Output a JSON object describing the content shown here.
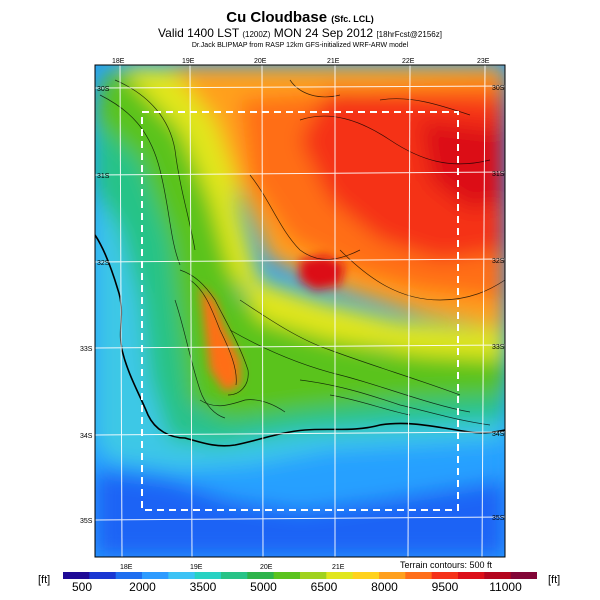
{
  "header": {
    "title": "Cu Cloudbase",
    "title_suffix": "(Sfc. LCL)",
    "valid_line_main": "Valid 1400 LST",
    "valid_line_small1": "(1200Z)",
    "valid_line_date": "MON 24 Sep 2012",
    "valid_line_small2": "[18hrFcst@2156z]",
    "credit": "Dr.Jack BLIPMAP from RASP 12km GFS-initialized WRF-ARW model"
  },
  "map": {
    "lon_labels_top": [
      "18E",
      "19E",
      "20E",
      "21E",
      "22E",
      "23E"
    ],
    "lon_labels_bottom": [
      "18E",
      "19E",
      "20E",
      "21E"
    ],
    "lat_labels_left": [
      "30S",
      "31S",
      "32S",
      "33S",
      "34S",
      "35S"
    ],
    "lat_labels_right": [
      "30S",
      "31S",
      "32S",
      "33S",
      "34S",
      "35S"
    ],
    "terrain_note": "Terrain contours: 500 ft",
    "domain_box": "dashed white inner region"
  },
  "colorbar": {
    "unit_left": "[ft]",
    "unit_right": "[ft]",
    "labels": [
      "500",
      "2000",
      "3500",
      "5000",
      "6500",
      "8000",
      "9500",
      "11000"
    ],
    "colors": [
      "#1e0a96",
      "#1937d2",
      "#1e6ef0",
      "#2d9bff",
      "#3cc3f5",
      "#28d2c3",
      "#28c387",
      "#2db44b",
      "#5ac31e",
      "#a0d21e",
      "#e1e61e",
      "#ffd21e",
      "#ffa01e",
      "#ff6e19",
      "#f53219",
      "#dc0f19",
      "#b4051e",
      "#820537"
    ]
  },
  "field_colors": {
    "sea_deep": "#1e64f5",
    "sea": "#28a0ff",
    "coast": "#3cc8e6",
    "low": "#28c387",
    "mid": "#5ac31e",
    "midhigh": "#e1e61e",
    "high": "#ffa01e",
    "higher": "#ff6e19",
    "hot": "#f53219",
    "peak": "#dc0f19"
  }
}
